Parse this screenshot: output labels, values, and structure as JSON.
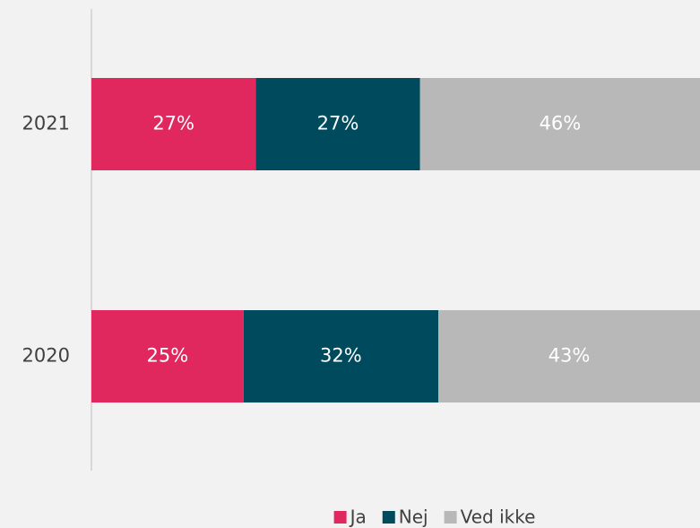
{
  "chart_data": {
    "type": "stacked-barh",
    "categories": [
      "2021",
      "2020"
    ],
    "series": [
      {
        "name": "Ja",
        "color": "#e0285f",
        "values": [
          27,
          25
        ],
        "value_labels": [
          "27%",
          "25%"
        ]
      },
      {
        "name": "Nej",
        "color": "#004a5e",
        "values": [
          27,
          32
        ],
        "value_labels": [
          "27%",
          "32%"
        ]
      },
      {
        "name": "Ved ikke",
        "color": "#b8b8b8",
        "values": [
          46,
          43
        ],
        "value_labels": [
          "46%",
          "43%"
        ]
      }
    ]
  }
}
